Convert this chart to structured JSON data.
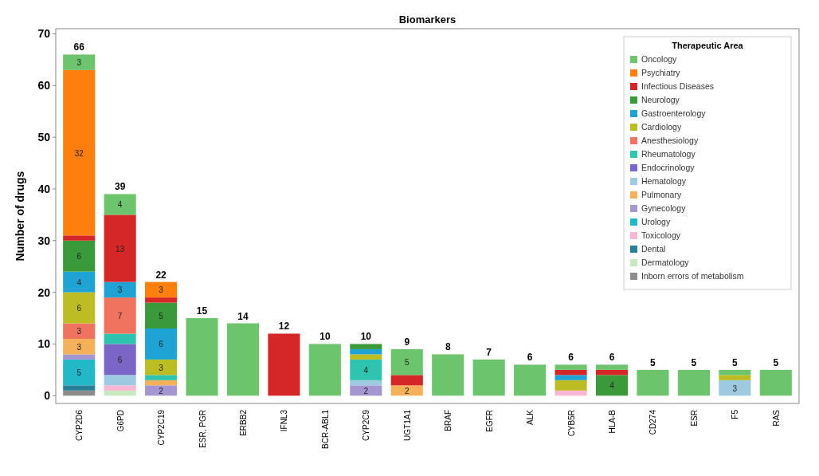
{
  "chart_data": {
    "type": "bar",
    "stacked": true,
    "title": "Biomarkers",
    "ylabel": "Number of drugs",
    "legend_title": "Therapeutic Area",
    "legend": "top right",
    "categories": [
      "CYP2D6",
      "G6PD",
      "CYP2C19",
      "ESR, PGR",
      "ERBB2",
      "IFNL3",
      "BCR-ABL1",
      "CYP2C9",
      "UGT1A1",
      "BRAF",
      "EGFR",
      "ALK",
      "CYB5R",
      "HLA-B",
      "CD274",
      "ESR",
      "F5",
      "RAS"
    ],
    "ylim": [
      -1.5,
      71
    ],
    "yticks": [
      0,
      10,
      20,
      30,
      40,
      50,
      60,
      70
    ],
    "totals": [
      "66",
      "39",
      "22",
      "15",
      "14",
      "12",
      "10",
      "10",
      "9",
      "8",
      "7",
      "6",
      "6",
      "6",
      "5",
      "5",
      "5",
      "5"
    ],
    "series": [
      {
        "name": "Inborn errors of metabolism",
        "color": "#8c8c8c",
        "values": [
          1,
          null,
          null,
          null,
          null,
          null,
          null,
          null,
          null,
          null,
          null,
          null,
          null,
          null,
          null,
          null,
          null,
          null
        ]
      },
      {
        "name": "Dermatology",
        "color": "#c7e9c0",
        "values": [
          null,
          1,
          null,
          null,
          null,
          null,
          null,
          null,
          null,
          null,
          null,
          null,
          null,
          null,
          null,
          null,
          null,
          null
        ]
      },
      {
        "name": "Dental",
        "color": "#2a7f98",
        "values": [
          1,
          null,
          null,
          null,
          null,
          null,
          null,
          null,
          null,
          null,
          null,
          null,
          null,
          null,
          null,
          null,
          null,
          null
        ]
      },
      {
        "name": "Toxicology",
        "color": "#f7b6d2",
        "values": [
          null,
          1,
          null,
          null,
          null,
          null,
          null,
          null,
          null,
          null,
          null,
          null,
          1,
          null,
          null,
          null,
          null,
          null
        ]
      },
      {
        "name": "Urology",
        "color": "#23b8c8",
        "values": [
          5,
          null,
          null,
          null,
          null,
          null,
          null,
          null,
          null,
          null,
          null,
          null,
          null,
          null,
          null,
          null,
          null,
          null
        ],
        "value_labels": [
          "5",
          null,
          null,
          null,
          null,
          null,
          null,
          null,
          null,
          null,
          null,
          null,
          null,
          null,
          null,
          null,
          null,
          null
        ]
      },
      {
        "name": "Gynecology",
        "color": "#a596d1",
        "values": [
          1,
          null,
          2,
          null,
          null,
          null,
          null,
          2,
          null,
          null,
          null,
          null,
          null,
          null,
          null,
          null,
          null,
          null
        ],
        "value_labels": [
          null,
          null,
          "2",
          null,
          null,
          null,
          null,
          "2",
          null,
          null,
          null,
          null,
          null,
          null,
          null,
          null,
          null,
          null
        ]
      },
      {
        "name": "Pulmonary",
        "color": "#f5b15a",
        "values": [
          3,
          null,
          1,
          null,
          null,
          null,
          null,
          null,
          2,
          null,
          null,
          null,
          null,
          null,
          null,
          null,
          null,
          null
        ],
        "value_labels": [
          "3",
          null,
          null,
          null,
          null,
          null,
          null,
          null,
          "2",
          null,
          null,
          null,
          null,
          null,
          null,
          null,
          null,
          null
        ]
      },
      {
        "name": "Hematology",
        "color": "#9ecae1",
        "values": [
          null,
          2,
          null,
          null,
          null,
          null,
          null,
          1,
          null,
          null,
          null,
          null,
          null,
          null,
          null,
          null,
          3,
          null
        ],
        "value_labels": [
          null,
          null,
          null,
          null,
          null,
          null,
          null,
          null,
          null,
          null,
          null,
          null,
          null,
          null,
          null,
          null,
          "3",
          null
        ]
      },
      {
        "name": "Endocrinology",
        "color": "#7b65c6",
        "values": [
          null,
          6,
          null,
          null,
          null,
          null,
          null,
          null,
          null,
          null,
          null,
          null,
          null,
          null,
          null,
          null,
          null,
          null
        ],
        "value_labels": [
          null,
          "6",
          null,
          null,
          null,
          null,
          null,
          null,
          null,
          null,
          null,
          null,
          null,
          null,
          null,
          null,
          null,
          null
        ]
      },
      {
        "name": "Rheumatology",
        "color": "#2ec4b0",
        "values": [
          null,
          2,
          1,
          null,
          null,
          null,
          null,
          4,
          null,
          null,
          null,
          null,
          null,
          null,
          null,
          null,
          null,
          null
        ],
        "value_labels": [
          null,
          null,
          null,
          null,
          null,
          null,
          null,
          "4",
          null,
          null,
          null,
          null,
          null,
          null,
          null,
          null,
          null,
          null
        ]
      },
      {
        "name": "Anesthesiology",
        "color": "#f0735f",
        "values": [
          3,
          7,
          null,
          null,
          null,
          null,
          null,
          null,
          null,
          null,
          null,
          null,
          null,
          null,
          null,
          null,
          null,
          null
        ],
        "value_labels": [
          "3",
          "7",
          null,
          null,
          null,
          null,
          null,
          null,
          null,
          null,
          null,
          null,
          null,
          null,
          null,
          null,
          null,
          null
        ]
      },
      {
        "name": "Cardiology",
        "color": "#bcbd22",
        "values": [
          6,
          null,
          3,
          null,
          null,
          null,
          null,
          1,
          null,
          null,
          null,
          null,
          2,
          null,
          null,
          null,
          1,
          null
        ],
        "value_labels": [
          "6",
          null,
          "3",
          null,
          null,
          null,
          null,
          null,
          null,
          null,
          null,
          null,
          null,
          null,
          null,
          null,
          null,
          null
        ]
      },
      {
        "name": "Gastroenterology",
        "color": "#1fa3d4",
        "values": [
          4,
          3,
          6,
          null,
          null,
          null,
          null,
          1,
          null,
          null,
          null,
          null,
          1,
          null,
          null,
          null,
          null,
          null
        ],
        "value_labels": [
          "4",
          "3",
          "6",
          null,
          null,
          null,
          null,
          null,
          null,
          null,
          null,
          null,
          null,
          null,
          null,
          null,
          null,
          null
        ]
      },
      {
        "name": "Neurology",
        "color": "#3a9a3a",
        "values": [
          6,
          null,
          5,
          null,
          null,
          null,
          null,
          1,
          null,
          null,
          null,
          null,
          null,
          4,
          null,
          null,
          null,
          null
        ],
        "value_labels": [
          "6",
          null,
          "5",
          null,
          null,
          null,
          null,
          null,
          null,
          null,
          null,
          null,
          null,
          "4",
          null,
          null,
          null,
          null
        ]
      },
      {
        "name": "Infectious Diseases",
        "color": "#d62728",
        "values": [
          1,
          13,
          1,
          null,
          null,
          12,
          null,
          null,
          2,
          null,
          null,
          null,
          1,
          1,
          null,
          null,
          null,
          null
        ],
        "value_labels": [
          null,
          "13",
          null,
          null,
          null,
          null,
          null,
          null,
          null,
          null,
          null,
          null,
          null,
          null,
          null,
          null,
          null,
          null
        ]
      },
      {
        "name": "Psychiatry",
        "color": "#ff7f0e",
        "values": [
          32,
          null,
          3,
          null,
          null,
          null,
          null,
          null,
          null,
          null,
          null,
          null,
          null,
          null,
          null,
          null,
          null,
          null
        ],
        "value_labels": [
          "32",
          null,
          "3",
          null,
          null,
          null,
          null,
          null,
          null,
          null,
          null,
          null,
          null,
          null,
          null,
          null,
          null,
          null
        ]
      },
      {
        "name": "Oncology",
        "color": "#6cc46c",
        "values": [
          3,
          4,
          null,
          15,
          14,
          null,
          10,
          null,
          5,
          8,
          7,
          6,
          1,
          1,
          5,
          5,
          1,
          5
        ],
        "value_labels": [
          "3",
          "4",
          null,
          null,
          null,
          null,
          null,
          null,
          "5",
          null,
          null,
          null,
          null,
          null,
          null,
          null,
          null,
          null
        ]
      }
    ]
  }
}
